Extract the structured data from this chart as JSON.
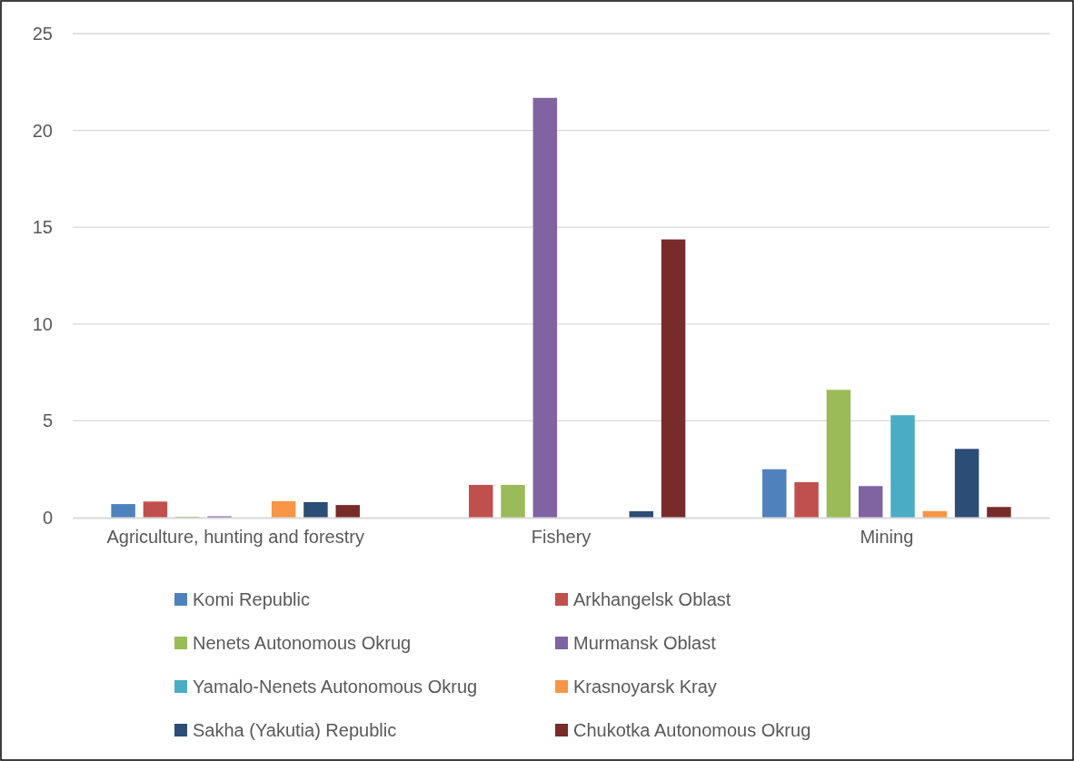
{
  "chart_data": {
    "type": "bar",
    "categories": [
      "Agriculture, hunting and forestry",
      "Fishery",
      "Mining"
    ],
    "series": [
      {
        "name": "Komi Republic",
        "color": "#4f81bd",
        "values": [
          0.7,
          0,
          2.5
        ]
      },
      {
        "name": "Arkhangelsk Oblast",
        "color": "#c0504d",
        "values": [
          0.83,
          1.69,
          1.83
        ]
      },
      {
        "name": "Nenets Autonomous Okrug",
        "color": "#9bbb59",
        "values": [
          0.05,
          1.69,
          6.6
        ]
      },
      {
        "name": "Murmansk Oblast",
        "color": "#8064a2",
        "values": [
          0.07,
          21.68,
          1.63
        ]
      },
      {
        "name": "Yamalo-Nenets Autonomous Okrug",
        "color": "#4bacc6",
        "values": [
          0,
          0,
          5.29
        ]
      },
      {
        "name": "Krasnoyarsk Kray",
        "color": "#f79646",
        "values": [
          0.85,
          0,
          0.34
        ]
      },
      {
        "name": "Sakha (Yakutia) Republic",
        "color": "#2c4d75",
        "values": [
          0.8,
          0.33,
          3.55
        ]
      },
      {
        "name": "Chukotka Autonomous Okrug",
        "color": "#772c2a",
        "values": [
          0.65,
          14.37,
          0.55
        ]
      }
    ],
    "ylim": [
      0,
      25
    ],
    "yticks": [
      0,
      5,
      10,
      15,
      20,
      25
    ],
    "grid": "y",
    "legend": "bottom"
  }
}
